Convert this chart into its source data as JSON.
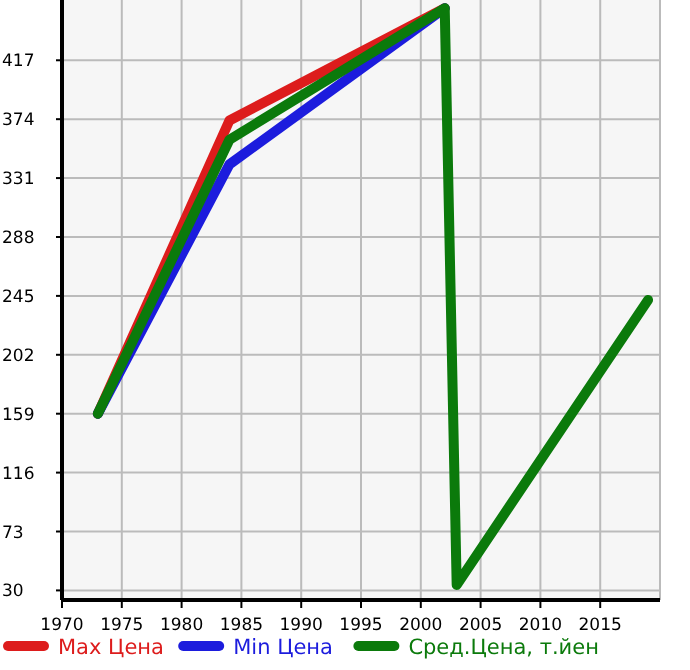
{
  "chart_data": {
    "type": "line",
    "x": [
      1973,
      1984,
      2002,
      2003,
      2019
    ],
    "series": [
      {
        "name": "Max Цена",
        "color": "#dd1c1c",
        "values": [
          159,
          373,
          455,
          null,
          null
        ]
      },
      {
        "name": "Min Цена",
        "color": "#1c1cdd",
        "values": [
          159,
          341,
          455,
          null,
          null
        ]
      },
      {
        "name": "Сред.Цена, т.йен",
        "color": "#0b7a0b",
        "values": [
          159,
          359,
          455,
          34,
          242
        ]
      }
    ],
    "xlim": [
      1970,
      2020
    ],
    "xticks": [
      1970,
      1975,
      1980,
      1985,
      1990,
      1995,
      2000,
      2005,
      2010,
      2015
    ],
    "ylim": [
      23,
      461
    ],
    "yticks": [
      30,
      73,
      116,
      159,
      202,
      245,
      288,
      331,
      374,
      417
    ],
    "grid": true,
    "legend": "bottom",
    "marker": "none",
    "line_style": "solid"
  }
}
